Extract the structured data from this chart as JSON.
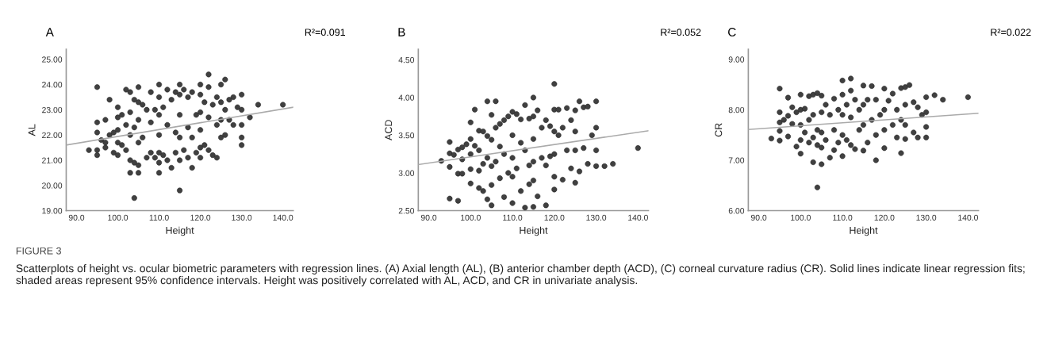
{
  "chart_data": [
    {
      "type": "scatter",
      "title": "A",
      "xlabel": "Height",
      "ylabel": "AL",
      "annotations": [
        "R²=0.091"
      ],
      "grid": false,
      "xlim": [
        87.5,
        142.5
      ],
      "xticks": [
        {
          "value": 90,
          "label": "90.0"
        },
        {
          "value": 100,
          "label": "100.0"
        },
        {
          "value": 110,
          "label": "110.0"
        },
        {
          "value": 120,
          "label": "120.0"
        },
        {
          "value": 130,
          "label": "130.0"
        },
        {
          "value": 140,
          "label": "140.0"
        }
      ],
      "ylim": [
        19,
        25.4
      ],
      "yticks": [
        {
          "value": 19,
          "label": "19.00"
        },
        {
          "value": 20,
          "label": "20.00"
        },
        {
          "value": 21,
          "label": "21.00"
        },
        {
          "value": 22,
          "label": "22.00"
        },
        {
          "value": 23,
          "label": "23.00"
        },
        {
          "value": 24,
          "label": "24.00"
        },
        {
          "value": 25,
          "label": "25.00"
        }
      ],
      "series": [
        {
          "type": "scatter",
          "marker": "circle",
          "color": "#404040",
          "x": [
            93,
            95,
            95,
            95,
            95,
            95,
            96,
            97,
            97,
            97,
            98,
            98,
            99,
            99,
            100,
            100,
            100,
            100,
            100,
            101,
            101,
            102,
            102,
            102,
            103,
            103,
            103,
            103,
            103,
            104,
            104,
            104,
            104,
            105,
            105,
            105,
            105,
            105,
            105,
            106,
            106,
            107,
            107,
            108,
            108,
            108,
            109,
            109,
            110,
            110,
            110,
            110,
            110,
            110,
            110,
            111,
            111,
            112,
            112,
            112,
            113,
            113,
            114,
            114,
            114,
            115,
            115,
            115,
            115,
            115,
            115,
            116,
            116,
            117,
            117,
            117,
            118,
            118,
            118,
            119,
            119,
            120,
            120,
            120,
            120,
            120,
            120,
            121,
            121,
            122,
            122,
            122,
            122,
            123,
            123,
            124,
            124,
            124,
            125,
            125,
            125,
            125,
            126,
            126,
            126,
            127,
            127,
            128,
            128,
            129,
            130,
            130,
            130,
            130,
            130,
            132,
            134,
            140
          ],
          "values": [
            21.4,
            23.9,
            22.5,
            22.1,
            21.4,
            21.2,
            21.8,
            22.6,
            21.7,
            21.5,
            23.4,
            22.0,
            22.1,
            21.3,
            23.1,
            22.7,
            22.2,
            21.7,
            21.2,
            22.8,
            21.6,
            23.8,
            22.4,
            21.4,
            23.7,
            22.9,
            22.0,
            21.0,
            20.5,
            23.4,
            22.3,
            20.9,
            19.5,
            23.9,
            23.3,
            22.6,
            21.7,
            20.8,
            20.5,
            23.2,
            21.9,
            23.0,
            21.1,
            23.7,
            22.5,
            21.3,
            23.0,
            21.1,
            24.0,
            23.5,
            22.8,
            22.0,
            21.3,
            20.9,
            20.5,
            23.1,
            21.2,
            23.8,
            22.4,
            21.0,
            23.4,
            20.7,
            23.7,
            22.1,
            21.3,
            24.0,
            23.6,
            22.8,
            21.9,
            21.0,
            19.8,
            23.8,
            21.4,
            23.5,
            22.3,
            21.1,
            23.7,
            21.9,
            20.7,
            22.8,
            21.3,
            24.0,
            23.6,
            22.9,
            22.2,
            21.5,
            21.1,
            23.3,
            21.6,
            24.4,
            23.9,
            22.7,
            21.4,
            23.2,
            21.2,
            23.5,
            22.4,
            21.1,
            24.0,
            23.3,
            22.6,
            21.9,
            24.2,
            23.0,
            22.0,
            23.4,
            22.6,
            23.5,
            22.4,
            23.1,
            23.6,
            23.0,
            22.4,
            21.9,
            21.6,
            22.7,
            23.2,
            23.2
          ]
        },
        {
          "type": "line",
          "color": "#aaaaaa",
          "x": [
            87.5,
            142.5
          ],
          "values": [
            21.6,
            23.1
          ]
        }
      ]
    },
    {
      "type": "scatter",
      "title": "B",
      "xlabel": "Height",
      "ylabel": "ACD",
      "annotations": [
        "R²=0.052"
      ],
      "grid": false,
      "xlim": [
        87.5,
        142.5
      ],
      "xticks": [
        {
          "value": 90,
          "label": "90.0"
        },
        {
          "value": 100,
          "label": "100.0"
        },
        {
          "value": 110,
          "label": "110.0"
        },
        {
          "value": 120,
          "label": "120.0"
        },
        {
          "value": 130,
          "label": "130.0"
        },
        {
          "value": 140,
          "label": "140.0"
        }
      ],
      "ylim": [
        2.5,
        4.64
      ],
      "yticks": [
        {
          "value": 2.5,
          "label": "2.50"
        },
        {
          "value": 3,
          "label": "3.00"
        },
        {
          "value": 3.5,
          "label": "3.50"
        },
        {
          "value": 4,
          "label": "4.00"
        },
        {
          "value": 4.5,
          "label": "4.50"
        }
      ],
      "series": [
        {
          "type": "scatter",
          "marker": "circle",
          "color": "#404040",
          "x": [
            93,
            95,
            95,
            95,
            95,
            96,
            97,
            97,
            97,
            98,
            98,
            98,
            99,
            100,
            100,
            100,
            100,
            100,
            101,
            101,
            102,
            102,
            102,
            102,
            103,
            103,
            103,
            104,
            104,
            104,
            104,
            105,
            105,
            105,
            105,
            105,
            106,
            106,
            106,
            107,
            107,
            107,
            108,
            108,
            108,
            109,
            109,
            110,
            110,
            110,
            110,
            110,
            111,
            111,
            112,
            112,
            112,
            113,
            113,
            113,
            114,
            114,
            114,
            115,
            115,
            115,
            115,
            115,
            115,
            116,
            116,
            117,
            117,
            118,
            118,
            118,
            119,
            119,
            120,
            120,
            120,
            120,
            120,
            120,
            121,
            121,
            122,
            122,
            123,
            123,
            124,
            124,
            125,
            125,
            125,
            125,
            126,
            126,
            127,
            127,
            128,
            128,
            129,
            130,
            130,
            130,
            130,
            132,
            134,
            140
          ],
          "values": [
            3.16,
            3.41,
            3.26,
            3.08,
            2.66,
            3.24,
            3.31,
            2.99,
            2.63,
            3.34,
            3.18,
            2.99,
            3.38,
            3.67,
            3.45,
            3.25,
            3.05,
            2.86,
            3.84,
            3.36,
            3.56,
            3.3,
            3.03,
            2.8,
            3.55,
            3.12,
            2.76,
            3.95,
            3.49,
            3.2,
            2.65,
            3.77,
            3.44,
            3.09,
            2.84,
            2.57,
            3.95,
            3.6,
            3.15,
            3.65,
            3.35,
            2.93,
            3.7,
            3.25,
            2.68,
            3.75,
            3.0,
            3.81,
            3.5,
            3.2,
            2.95,
            2.6,
            3.78,
            3.06,
            3.71,
            3.4,
            2.76,
            3.9,
            3.3,
            2.54,
            3.72,
            3.1,
            2.85,
            4.0,
            3.75,
            3.45,
            3.15,
            2.9,
            2.55,
            3.83,
            2.69,
            3.6,
            3.2,
            3.7,
            3.1,
            2.57,
            3.62,
            3.22,
            4.18,
            3.84,
            3.55,
            3.25,
            2.95,
            2.78,
            3.84,
            3.5,
            3.6,
            2.91,
            3.86,
            3.3,
            3.7,
            3.06,
            3.83,
            3.55,
            3.3,
            2.87,
            3.95,
            3.02,
            3.87,
            3.33,
            3.88,
            3.12,
            3.5,
            3.95,
            3.6,
            3.3,
            3.09,
            3.09,
            3.12,
            3.33
          ]
        },
        {
          "type": "line",
          "color": "#aaaaaa",
          "x": [
            87.5,
            142.5
          ],
          "values": [
            3.11,
            3.56
          ]
        }
      ]
    },
    {
      "type": "scatter",
      "title": "C",
      "xlabel": "Height",
      "ylabel": "CR",
      "annotations": [
        "R²=0.022"
      ],
      "grid": false,
      "xlim": [
        87.5,
        142.5
      ],
      "xticks": [
        {
          "value": 90,
          "label": "90.0"
        },
        {
          "value": 100,
          "label": "100.0"
        },
        {
          "value": 110,
          "label": "110.0"
        },
        {
          "value": 120,
          "label": "120.0"
        },
        {
          "value": 130,
          "label": "130.0"
        },
        {
          "value": 140,
          "label": "140.0"
        }
      ],
      "ylim": [
        6,
        9.2
      ],
      "yticks": [
        {
          "value": 6,
          "label": "6.00"
        },
        {
          "value": 7,
          "label": "7.00"
        },
        {
          "value": 8,
          "label": "8.00"
        },
        {
          "value": 9,
          "label": "9.00"
        }
      ],
      "series": [
        {
          "type": "scatter",
          "marker": "circle",
          "color": "#404040",
          "x": [
            93,
            95,
            95,
            95,
            95,
            95,
            96,
            97,
            97,
            97,
            98,
            98,
            99,
            99,
            100,
            100,
            100,
            100,
            100,
            101,
            101,
            102,
            102,
            102,
            103,
            103,
            103,
            103,
            104,
            104,
            104,
            104,
            105,
            105,
            105,
            105,
            105,
            106,
            106,
            107,
            107,
            108,
            108,
            108,
            109,
            109,
            110,
            110,
            110,
            110,
            110,
            111,
            111,
            112,
            112,
            112,
            112,
            113,
            113,
            114,
            114,
            115,
            115,
            115,
            115,
            116,
            116,
            117,
            117,
            118,
            118,
            118,
            119,
            120,
            120,
            120,
            120,
            121,
            122,
            122,
            123,
            123,
            124,
            124,
            124,
            125,
            125,
            125,
            125,
            126,
            127,
            127,
            128,
            128,
            129,
            130,
            130,
            130,
            130,
            132,
            134,
            140
          ],
          "values": [
            7.43,
            8.42,
            7.95,
            7.75,
            7.58,
            7.39,
            7.8,
            8.24,
            7.88,
            7.47,
            8.05,
            7.72,
            7.95,
            7.27,
            8.3,
            8.0,
            7.7,
            7.4,
            7.13,
            8.02,
            7.55,
            8.27,
            7.8,
            7.35,
            8.3,
            7.9,
            7.45,
            6.96,
            8.33,
            7.6,
            7.3,
            6.46,
            8.28,
            7.95,
            7.55,
            7.25,
            6.92,
            8.1,
            7.4,
            7.9,
            7.05,
            8.22,
            7.6,
            7.2,
            8.0,
            7.35,
            8.58,
            8.3,
            7.9,
            7.5,
            7.08,
            8.1,
            7.4,
            8.62,
            8.38,
            7.85,
            7.3,
            8.2,
            7.22,
            8.0,
            7.6,
            8.48,
            8.1,
            7.7,
            7.19,
            8.2,
            7.35,
            8.47,
            7.8,
            8.2,
            7.5,
            7.0,
            7.9,
            8.42,
            8.0,
            7.6,
            7.24,
            8.18,
            8.32,
            7.7,
            8.0,
            7.45,
            8.43,
            7.8,
            7.14,
            8.45,
            8.1,
            7.7,
            7.42,
            8.49,
            8.15,
            7.55,
            8.05,
            7.45,
            7.9,
            8.25,
            7.95,
            7.66,
            7.45,
            8.29,
            8.2,
            8.25
          ]
        },
        {
          "type": "line",
          "color": "#aaaaaa",
          "x": [
            87.5,
            142.5
          ],
          "values": [
            7.61,
            7.93
          ]
        }
      ]
    },
    {
      "type": "other",
      "title": "FIGURE 3",
      "annotations": [
        "Scatterplots of height vs. ocular biometric parameters with regression lines. (A) Axial length (AL), (B) anterior chamber depth (ACD), (C) corneal curvature radius (CR). Solid lines indicate linear regression fits; shaded areas represent 95% confidence intervals. Height was positively correlated with AL, ACD, and CR in univariate analysis."
      ]
    }
  ]
}
